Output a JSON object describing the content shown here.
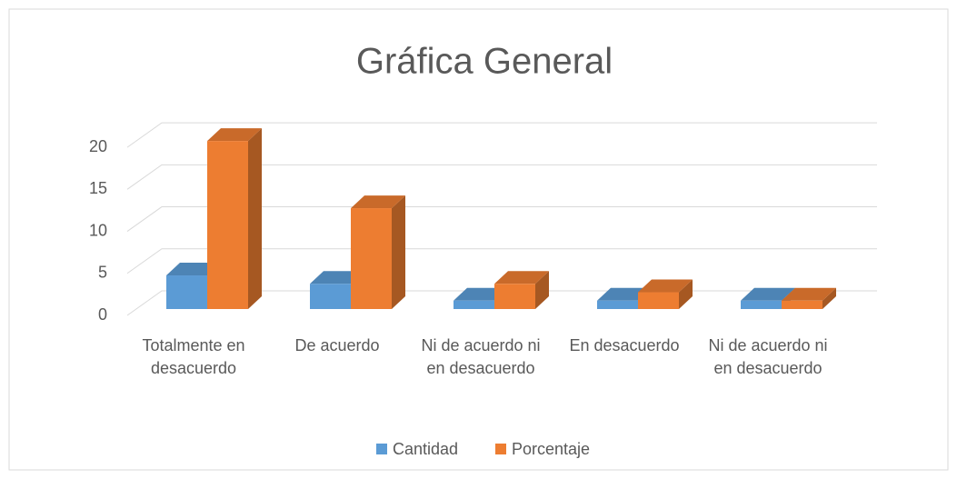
{
  "chart_data": {
    "type": "bar3d",
    "title": "Gráfica General",
    "categories": [
      "Totalmente en desacuerdo",
      "De acuerdo",
      "Ni de acuerdo ni en desacuerdo",
      "En desacuerdo",
      "Ni de acuerdo ni en desacuerdo"
    ],
    "series": [
      {
        "name": "Cantidad",
        "color": "#5b9bd5",
        "values": [
          4,
          3,
          1,
          1,
          1
        ]
      },
      {
        "name": "Porcentaje",
        "color": "#ed7d31",
        "values": [
          20,
          12,
          3,
          2,
          1
        ]
      }
    ],
    "ylim": [
      0,
      22.5
    ],
    "yticks": [
      0,
      5,
      10,
      15,
      20
    ],
    "grid": true,
    "legend": "bottom"
  }
}
